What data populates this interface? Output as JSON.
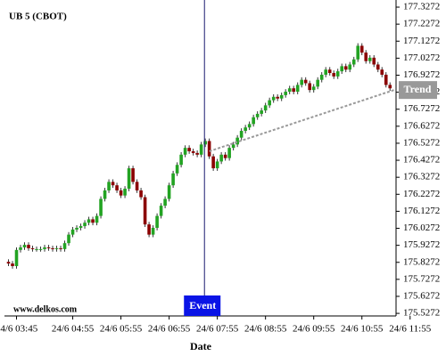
{
  "chart_data": {
    "type": "candlestick",
    "title": "UB 5 (CBOT)",
    "watermark": "www.delkos.com",
    "x_label": "Date",
    "up_color": "#22a322",
    "down_color": "#8b0000",
    "wick_color": "#333333",
    "xlim": [
      -1,
      96.5
    ],
    "ylim": [
      175.512,
      177.343
    ],
    "xticks": [
      {
        "value": 2,
        "label": "24/6 03:45"
      },
      {
        "value": 16,
        "label": "24/6 04:55"
      },
      {
        "value": 28,
        "label": "24/6 05:55"
      },
      {
        "value": 40,
        "label": "24/6 06:55"
      },
      {
        "value": 52,
        "label": "24/6 07:55"
      },
      {
        "value": 64,
        "label": "24/6 08:55"
      },
      {
        "value": 76,
        "label": "24/6 09:55"
      },
      {
        "value": 88,
        "label": "24/6 10:55"
      },
      {
        "value": 100,
        "label": "24/6 11:55"
      }
    ],
    "yticks": [
      175.5272,
      175.6272,
      175.7272,
      175.8272,
      175.9272,
      176.0272,
      176.1272,
      176.2272,
      176.3272,
      176.4272,
      176.5272,
      176.6272,
      176.7272,
      176.8272,
      176.9272,
      177.0272,
      177.1272,
      177.2272,
      177.3272
    ],
    "open": [
      175.83,
      175.82,
      175.805,
      175.9,
      175.915,
      175.93,
      175.91,
      175.905,
      175.905,
      175.905,
      175.915,
      175.91,
      175.905,
      175.91,
      175.905,
      175.94,
      175.99,
      176.02,
      176.03,
      176.04,
      176.06,
      176.08,
      176.06,
      176.1,
      176.2,
      176.25,
      176.3,
      176.28,
      176.25,
      176.22,
      176.26,
      176.38,
      176.3,
      176.25,
      176.21,
      176.05,
      175.99,
      176.03,
      176.1,
      176.16,
      176.2,
      176.28,
      176.35,
      176.4,
      176.46,
      176.5,
      176.48,
      176.47,
      176.46,
      176.52,
      176.54,
      176.45,
      176.38,
      176.42,
      176.46,
      176.44,
      176.5,
      176.52,
      176.56,
      176.6,
      176.62,
      176.64,
      176.68,
      176.7,
      176.72,
      176.75,
      176.78,
      176.8,
      176.79,
      176.81,
      176.83,
      176.85,
      176.83,
      176.87,
      176.9,
      176.88,
      176.84,
      176.86,
      176.9,
      176.93,
      176.96,
      176.94,
      176.92,
      176.95,
      176.98,
      176.96,
      176.99,
      177.02,
      177.1,
      177.06,
      177.01,
      177.03,
      176.99,
      176.96,
      176.93,
      176.87
    ],
    "high": [
      175.845,
      175.835,
      175.915,
      175.93,
      175.945,
      175.945,
      175.925,
      175.92,
      175.92,
      175.93,
      175.93,
      175.925,
      175.925,
      175.925,
      175.955,
      176.005,
      176.035,
      176.045,
      176.055,
      176.075,
      176.095,
      176.095,
      176.115,
      176.215,
      176.265,
      176.315,
      176.315,
      176.295,
      176.265,
      176.275,
      176.395,
      176.395,
      176.315,
      176.265,
      176.225,
      176.065,
      176.045,
      176.115,
      176.175,
      176.215,
      176.295,
      176.365,
      176.415,
      176.475,
      176.515,
      176.515,
      176.495,
      176.485,
      176.535,
      176.555,
      176.555,
      176.465,
      176.435,
      176.475,
      176.475,
      176.515,
      176.535,
      176.575,
      176.615,
      176.635,
      176.655,
      176.695,
      176.715,
      176.735,
      176.765,
      176.795,
      176.815,
      176.815,
      176.825,
      176.845,
      176.865,
      176.865,
      176.885,
      176.915,
      176.915,
      176.895,
      176.875,
      176.915,
      176.945,
      176.975,
      176.975,
      176.955,
      176.965,
      176.995,
      176.995,
      177.005,
      177.035,
      177.115,
      177.115,
      177.075,
      177.045,
      177.045,
      177.005,
      176.975,
      176.945,
      176.885
    ],
    "low": [
      175.805,
      175.79,
      175.79,
      175.885,
      175.9,
      175.895,
      175.89,
      175.89,
      175.89,
      175.89,
      175.895,
      175.89,
      175.89,
      175.89,
      175.89,
      175.925,
      175.975,
      176.005,
      176.015,
      176.025,
      176.045,
      176.045,
      176.045,
      176.085,
      176.185,
      176.235,
      176.265,
      176.235,
      176.205,
      176.205,
      176.245,
      176.285,
      176.235,
      176.195,
      176.035,
      175.975,
      175.975,
      176.015,
      176.085,
      176.145,
      176.185,
      176.265,
      176.335,
      176.385,
      176.445,
      176.465,
      176.455,
      176.445,
      176.445,
      176.505,
      176.435,
      176.365,
      176.365,
      176.405,
      176.425,
      176.425,
      176.485,
      176.505,
      176.545,
      176.585,
      176.605,
      176.625,
      176.665,
      176.685,
      176.705,
      176.735,
      176.765,
      176.775,
      176.775,
      176.795,
      176.815,
      176.815,
      176.815,
      176.855,
      176.865,
      176.825,
      176.825,
      176.845,
      176.885,
      176.915,
      176.925,
      176.905,
      176.905,
      176.935,
      176.945,
      176.945,
      176.975,
      177.005,
      177.045,
      176.995,
      176.995,
      176.975,
      176.945,
      176.915,
      176.855,
      176.835
    ],
    "close": [
      175.82,
      175.805,
      175.9,
      175.915,
      175.93,
      175.91,
      175.905,
      175.905,
      175.905,
      175.915,
      175.91,
      175.905,
      175.91,
      175.905,
      175.94,
      175.99,
      176.02,
      176.03,
      176.04,
      176.06,
      176.08,
      176.06,
      176.1,
      176.2,
      176.25,
      176.3,
      176.28,
      176.25,
      176.22,
      176.26,
      176.38,
      176.3,
      176.25,
      176.21,
      176.05,
      175.99,
      176.03,
      176.1,
      176.16,
      176.2,
      176.28,
      176.35,
      176.4,
      176.46,
      176.5,
      176.48,
      176.47,
      176.46,
      176.52,
      176.54,
      176.45,
      176.38,
      176.42,
      176.46,
      176.44,
      176.5,
      176.52,
      176.56,
      176.6,
      176.62,
      176.64,
      176.68,
      176.7,
      176.72,
      176.75,
      176.78,
      176.8,
      176.79,
      176.81,
      176.83,
      176.85,
      176.83,
      176.87,
      176.9,
      176.88,
      176.84,
      176.86,
      176.9,
      176.93,
      176.96,
      176.94,
      176.92,
      176.95,
      176.98,
      176.96,
      176.99,
      177.02,
      177.1,
      177.06,
      177.01,
      177.03,
      176.99,
      176.96,
      176.93,
      176.87,
      176.85
    ],
    "trend": {
      "label": "Trend",
      "color": "#999999",
      "x": [
        50,
        96
      ],
      "values": [
        176.48,
        176.84
      ]
    },
    "event": {
      "label": "Event",
      "color": "#0a14e6",
      "line_color": "#1a1a6e",
      "x": 48.8
    }
  }
}
